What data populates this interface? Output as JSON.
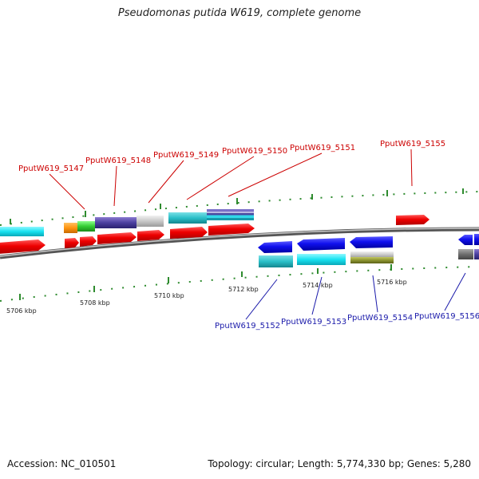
{
  "title": "Pseudomonas putida W619, complete genome",
  "footer": {
    "accession": "Accession: NC_010501",
    "summary": "Topology: circular; Length: 5,774,330 bp; Genes: 5,280"
  },
  "colors": {
    "forward_label": "#cc0000",
    "reverse_label": "#1a1aaa",
    "backbone": "#808080",
    "tick": "#2e8b2e"
  },
  "scale_labels": [
    "5706 kbp",
    "5708 kbp",
    "5710 kbp",
    "5712 kbp",
    "5714 kbp",
    "5716 kbp"
  ],
  "forward_labels": [
    "PputW619_5147",
    "PputW619_5148",
    "PputW619_5149",
    "PputW619_5150",
    "PputW619_5151",
    "PputW619_5155"
  ],
  "reverse_labels": [
    "PputW619_5152",
    "PputW619_5153",
    "PputW619_5154",
    "PputW619_5156"
  ]
}
